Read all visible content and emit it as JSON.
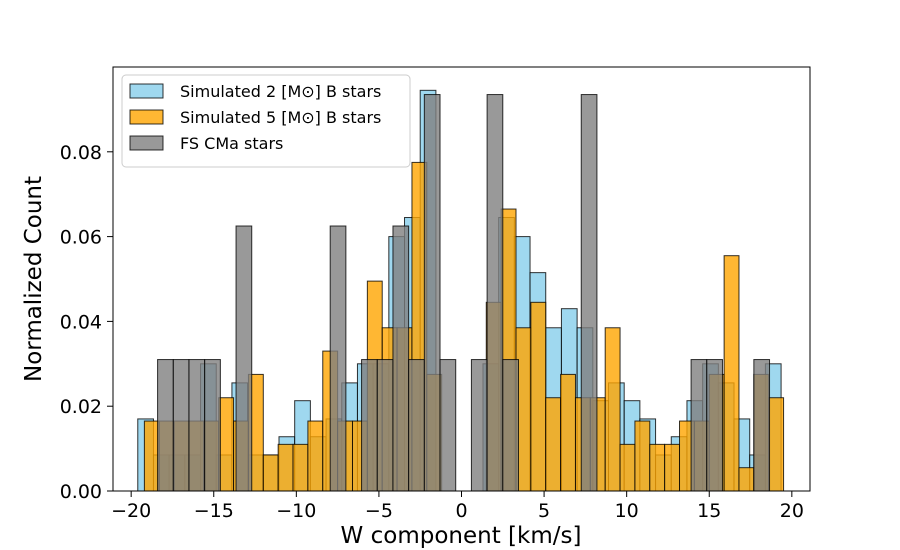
{
  "chart_data": {
    "type": "bar",
    "title": "",
    "xlabel": "W component [km/s]",
    "ylabel": "Normalized Count",
    "xlim": [
      -21.1,
      21.1
    ],
    "ylim": [
      0,
      0.1
    ],
    "xticks": [
      "−20",
      "−15",
      "−10",
      "−5",
      "0",
      "5",
      "10",
      "15",
      "20"
    ],
    "xtick_values": [
      -20,
      -15,
      -10,
      -5,
      0,
      5,
      10,
      15,
      20
    ],
    "yticks": [
      "0.00",
      "0.02",
      "0.04",
      "0.06",
      "0.08"
    ],
    "ytick_values": [
      0,
      0.02,
      0.04,
      0.06,
      0.08
    ],
    "grid": false,
    "legend_position": "top-left",
    "series": [
      {
        "name": "Simulated 2 [M⊙] B stars",
        "color": "#87CEEB",
        "bin_width": 0.95,
        "bins": [
          {
            "x": -19.6,
            "y": 0.017
          },
          {
            "x": -18.65,
            "y": 0.0085
          },
          {
            "x": -17.7,
            "y": 0.0085
          },
          {
            "x": -16.75,
            "y": 0.0085
          },
          {
            "x": -15.8,
            "y": 0.03
          },
          {
            "x": -14.85,
            "y": 0.0085
          },
          {
            "x": -13.9,
            "y": 0.0255
          },
          {
            "x": -12.95,
            "y": 0.0085
          },
          {
            "x": -12.0,
            "y": 0.0085
          },
          {
            "x": -11.05,
            "y": 0.0128
          },
          {
            "x": -10.1,
            "y": 0.0213
          },
          {
            "x": -9.15,
            "y": 0.0128
          },
          {
            "x": -8.2,
            "y": 0.017
          },
          {
            "x": -7.25,
            "y": 0.0255
          },
          {
            "x": -6.3,
            "y": 0.03
          },
          {
            "x": -5.35,
            "y": 0.03
          },
          {
            "x": -4.4,
            "y": 0.06
          },
          {
            "x": -3.45,
            "y": 0.0645
          },
          {
            "x": -2.5,
            "y": 0.0945
          },
          {
            "x": -1.55,
            "y": 0.0
          },
          {
            "x": -0.6,
            "y": 0.0
          },
          {
            "x": 0.35,
            "y": 0.0
          },
          {
            "x": 1.3,
            "y": 0.03
          },
          {
            "x": 2.25,
            "y": 0.0645
          },
          {
            "x": 3.2,
            "y": 0.06
          },
          {
            "x": 4.15,
            "y": 0.0515
          },
          {
            "x": 5.1,
            "y": 0.0385
          },
          {
            "x": 6.05,
            "y": 0.043
          },
          {
            "x": 7.0,
            "y": 0.0385
          },
          {
            "x": 7.95,
            "y": 0.0213
          },
          {
            "x": 8.9,
            "y": 0.0255
          },
          {
            "x": 9.85,
            "y": 0.0213
          },
          {
            "x": 10.8,
            "y": 0.017
          },
          {
            "x": 11.75,
            "y": 0.0085
          },
          {
            "x": 12.7,
            "y": 0.0128
          },
          {
            "x": 13.65,
            "y": 0.0213
          },
          {
            "x": 14.6,
            "y": 0.03
          },
          {
            "x": 15.55,
            "y": 0.0255
          },
          {
            "x": 16.5,
            "y": 0.017
          },
          {
            "x": 17.45,
            "y": 0.0085
          },
          {
            "x": 18.4,
            "y": 0.03
          }
        ]
      },
      {
        "name": "Simulated 5 [M⊙] B stars",
        "color": "#FFA500",
        "bin_width": 0.9,
        "bins": [
          {
            "x": -19.2,
            "y": 0.0165
          },
          {
            "x": -18.3,
            "y": 0.0165
          },
          {
            "x": -17.4,
            "y": 0.0165
          },
          {
            "x": -16.5,
            "y": 0.0165
          },
          {
            "x": -15.6,
            "y": 0.0165
          },
          {
            "x": -14.7,
            "y": 0.022
          },
          {
            "x": -13.8,
            "y": 0.0165
          },
          {
            "x": -12.9,
            "y": 0.0275
          },
          {
            "x": -12.0,
            "y": 0.0085
          },
          {
            "x": -11.1,
            "y": 0.011
          },
          {
            "x": -10.2,
            "y": 0.011
          },
          {
            "x": -9.3,
            "y": 0.0165
          },
          {
            "x": -8.4,
            "y": 0.033
          },
          {
            "x": -7.5,
            "y": 0.0165
          },
          {
            "x": -6.6,
            "y": 0.0165
          },
          {
            "x": -5.7,
            "y": 0.0495
          },
          {
            "x": -4.8,
            "y": 0.0385
          },
          {
            "x": -3.9,
            "y": 0.0385
          },
          {
            "x": -3.0,
            "y": 0.0775
          },
          {
            "x": -2.1,
            "y": 0.0275
          },
          {
            "x": -1.2,
            "y": 0.0
          },
          {
            "x": -0.3,
            "y": 0.0
          },
          {
            "x": 0.6,
            "y": 0.0
          },
          {
            "x": 1.5,
            "y": 0.0445
          },
          {
            "x": 2.4,
            "y": 0.0665
          },
          {
            "x": 3.3,
            "y": 0.0385
          },
          {
            "x": 4.2,
            "y": 0.0445
          },
          {
            "x": 5.1,
            "y": 0.022
          },
          {
            "x": 6.0,
            "y": 0.0275
          },
          {
            "x": 6.9,
            "y": 0.022
          },
          {
            "x": 7.8,
            "y": 0.022
          },
          {
            "x": 8.7,
            "y": 0.0385
          },
          {
            "x": 9.6,
            "y": 0.011
          },
          {
            "x": 10.5,
            "y": 0.0165
          },
          {
            "x": 11.4,
            "y": 0.011
          },
          {
            "x": 12.3,
            "y": 0.011
          },
          {
            "x": 13.2,
            "y": 0.0165
          },
          {
            "x": 14.1,
            "y": 0.0165
          },
          {
            "x": 15.0,
            "y": 0.0275
          },
          {
            "x": 15.9,
            "y": 0.0555
          },
          {
            "x": 16.8,
            "y": 0.0055
          },
          {
            "x": 17.7,
            "y": 0.0275
          },
          {
            "x": 18.6,
            "y": 0.022
          }
        ]
      },
      {
        "name": "FS CMa stars",
        "color": "#808080",
        "bin_width": 0.95,
        "bins": [
          {
            "x": -18.4,
            "y": 0.031
          },
          {
            "x": -17.45,
            "y": 0.031
          },
          {
            "x": -16.5,
            "y": 0.031
          },
          {
            "x": -15.55,
            "y": 0.031
          },
          {
            "x": -14.6,
            "y": 0.0
          },
          {
            "x": -13.65,
            "y": 0.0625
          },
          {
            "x": -12.7,
            "y": 0.0
          },
          {
            "x": -11.75,
            "y": 0.0
          },
          {
            "x": -10.8,
            "y": 0.0
          },
          {
            "x": -9.85,
            "y": 0.0
          },
          {
            "x": -8.9,
            "y": 0.0
          },
          {
            "x": -7.95,
            "y": 0.0625
          },
          {
            "x": -7.0,
            "y": 0.0
          },
          {
            "x": -6.05,
            "y": 0.031
          },
          {
            "x": -5.1,
            "y": 0.031
          },
          {
            "x": -4.15,
            "y": 0.0625
          },
          {
            "x": -3.2,
            "y": 0.031
          },
          {
            "x": -2.25,
            "y": 0.0935
          },
          {
            "x": -1.3,
            "y": 0.031
          },
          {
            "x": -0.35,
            "y": 0.0
          },
          {
            "x": 0.6,
            "y": 0.031
          },
          {
            "x": 1.55,
            "y": 0.0935
          },
          {
            "x": 2.5,
            "y": 0.031
          },
          {
            "x": 3.45,
            "y": 0.0
          },
          {
            "x": 4.4,
            "y": 0.0
          },
          {
            "x": 5.35,
            "y": 0.0
          },
          {
            "x": 6.3,
            "y": 0.0
          },
          {
            "x": 7.25,
            "y": 0.0935
          },
          {
            "x": 8.2,
            "y": 0.0
          },
          {
            "x": 9.15,
            "y": 0.0
          },
          {
            "x": 10.1,
            "y": 0.0
          },
          {
            "x": 11.05,
            "y": 0.0
          },
          {
            "x": 12.0,
            "y": 0.0
          },
          {
            "x": 12.95,
            "y": 0.0
          },
          {
            "x": 13.9,
            "y": 0.031
          },
          {
            "x": 14.85,
            "y": 0.031
          },
          {
            "x": 15.8,
            "y": 0.0
          },
          {
            "x": 16.75,
            "y": 0.0
          },
          {
            "x": 17.7,
            "y": 0.031
          }
        ]
      }
    ]
  }
}
